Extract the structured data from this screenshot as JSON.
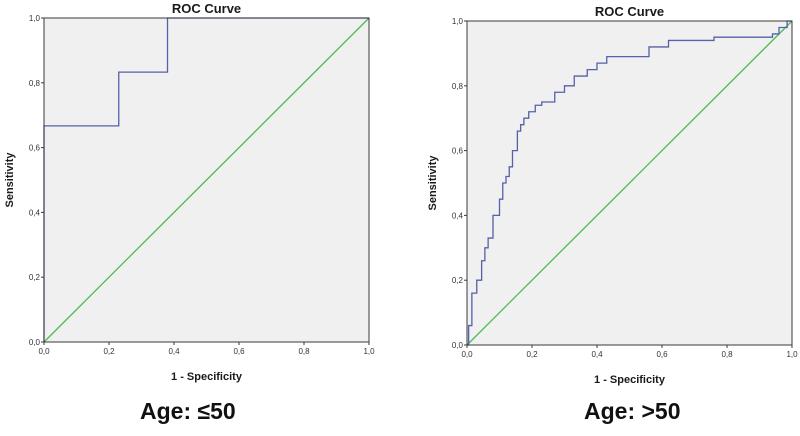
{
  "chart_data": [
    {
      "type": "line",
      "title": "ROC Curve",
      "xlabel": "1 - Specificity",
      "ylabel": "Sensitivity",
      "xlim": [
        0,
        1
      ],
      "ylim": [
        0,
        1
      ],
      "x_ticks": [
        "0,0",
        "0,2",
        "0,4",
        "0,6",
        "0,8",
        "1,0"
      ],
      "y_ticks": [
        "0,0",
        "0,2",
        "0,4",
        "0,6",
        "0,8",
        "1,0"
      ],
      "grid": false,
      "colors": {
        "roc": "#5561a8",
        "reference": "#4cbb54",
        "plot_bg": "#f0f0f0",
        "frame": "#3a3a3a"
      },
      "series": [
        {
          "x": [
            0,
            0,
            0.01,
            0.01,
            0.23,
            0.23,
            0.38,
            0.38,
            1.0
          ],
          "y": [
            0,
            0.667,
            0.667,
            0.667,
            0.667,
            0.833,
            0.833,
            1.0,
            1.0
          ]
        },
        {
          "x": [
            0,
            1
          ],
          "y": [
            0,
            1
          ]
        }
      ],
      "caption": "Age: ≤50"
    },
    {
      "type": "line",
      "title": "ROC Curve",
      "xlabel": "1 - Specificity",
      "ylabel": "Sensitivity",
      "xlim": [
        0,
        1
      ],
      "ylim": [
        0,
        1
      ],
      "x_ticks": [
        "0,0",
        "0,2",
        "0,4",
        "0,6",
        "0,8",
        "1,0"
      ],
      "y_ticks": [
        "0,0",
        "0,2",
        "0,4",
        "0,6",
        "0,8",
        "1,0"
      ],
      "grid": false,
      "colors": {
        "roc": "#5561a8",
        "reference": "#4cbb54",
        "plot_bg": "#f0f0f0",
        "frame": "#3a3a3a"
      },
      "series": [
        {
          "x": [
            0,
            0.005,
            0.005,
            0.015,
            0.015,
            0.03,
            0.03,
            0.045,
            0.045,
            0.055,
            0.055,
            0.065,
            0.065,
            0.08,
            0.08,
            0.1,
            0.1,
            0.11,
            0.11,
            0.12,
            0.12,
            0.13,
            0.13,
            0.14,
            0.14,
            0.155,
            0.155,
            0.165,
            0.165,
            0.175,
            0.175,
            0.19,
            0.19,
            0.21,
            0.21,
            0.23,
            0.23,
            0.27,
            0.27,
            0.3,
            0.3,
            0.33,
            0.33,
            0.37,
            0.37,
            0.4,
            0.4,
            0.43,
            0.43,
            0.56,
            0.56,
            0.62,
            0.62,
            0.76,
            0.76,
            0.94,
            0.94,
            0.96,
            0.96,
            0.985,
            0.985,
            1.0
          ],
          "y": [
            0,
            0,
            0.06,
            0.06,
            0.16,
            0.16,
            0.2,
            0.2,
            0.26,
            0.26,
            0.3,
            0.3,
            0.33,
            0.33,
            0.4,
            0.4,
            0.45,
            0.45,
            0.5,
            0.5,
            0.52,
            0.52,
            0.55,
            0.55,
            0.6,
            0.6,
            0.66,
            0.66,
            0.68,
            0.68,
            0.7,
            0.7,
            0.72,
            0.72,
            0.74,
            0.74,
            0.75,
            0.75,
            0.78,
            0.78,
            0.8,
            0.8,
            0.83,
            0.83,
            0.85,
            0.85,
            0.87,
            0.87,
            0.89,
            0.89,
            0.92,
            0.92,
            0.94,
            0.94,
            0.95,
            0.95,
            0.96,
            0.96,
            0.98,
            0.98,
            1.0,
            1.0
          ]
        },
        {
          "x": [
            0,
            1
          ],
          "y": [
            0,
            1
          ]
        }
      ],
      "caption": "Age: >50"
    }
  ]
}
